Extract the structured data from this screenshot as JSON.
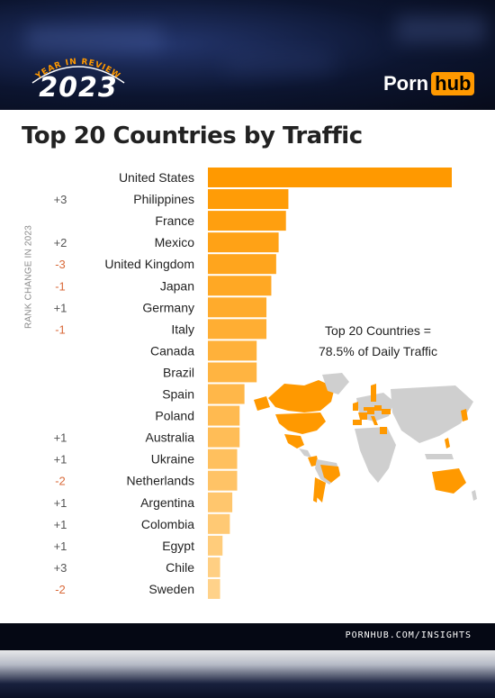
{
  "header": {
    "badge_arc_text": "YEAR IN REVIEW",
    "badge_year": "2023",
    "brand_left": "Porn",
    "brand_right": "hub"
  },
  "note": {
    "line1": "Top 20 Countries =",
    "line2": "78.5% of Daily Traffic"
  },
  "footer": {
    "url": "PORNHUB.COM/INSIGHTS"
  },
  "colors": {
    "bar_top": "#ff9900",
    "bar_bottom": "#ffd28a",
    "rank_up": "#555555",
    "rank_down": "#d96a3a",
    "map_highlight": "#ff9900",
    "map_other": "#cfcfcf"
  },
  "chart_data": {
    "type": "bar",
    "orientation": "horizontal",
    "title": "Top 20 Countries by Traffic",
    "rank_axis_label": "RANK CHANGE IN 2023",
    "categories": [
      "United States",
      "Philippines",
      "France",
      "Mexico",
      "United Kingdom",
      "Japan",
      "Germany",
      "Italy",
      "Canada",
      "Brazil",
      "Spain",
      "Poland",
      "Australia",
      "Ukraine",
      "Netherlands",
      "Argentina",
      "Colombia",
      "Egypt",
      "Chile",
      "Sweden"
    ],
    "rank_change": [
      "",
      "+3",
      "",
      "+2",
      "-3",
      "-1",
      "+1",
      "-1",
      "",
      "",
      "",
      "",
      "+1",
      "+1",
      "-2",
      "+1",
      "+1",
      "+1",
      "+3",
      "-2"
    ],
    "values": [
      100,
      33,
      32,
      29,
      28,
      26,
      24,
      24,
      20,
      20,
      15,
      13,
      13,
      12,
      12,
      10,
      9,
      6,
      5,
      5
    ],
    "xlim": [
      0,
      100
    ],
    "grid": false,
    "legend": "none"
  }
}
